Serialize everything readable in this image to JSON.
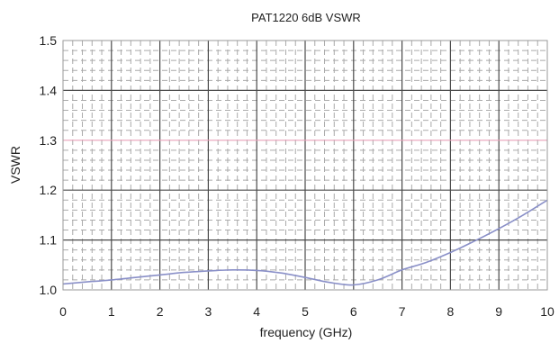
{
  "chart_data": {
    "type": "line",
    "title": "PAT1220 6dB VSWR",
    "xlabel": "frequency (GHz)",
    "ylabel": "VSWR",
    "xlim": [
      0,
      10
    ],
    "ylim": [
      1.0,
      1.5
    ],
    "x_ticks": [
      "0",
      "1",
      "2",
      "3",
      "4",
      "5",
      "6",
      "7",
      "8",
      "9",
      "10"
    ],
    "y_ticks": [
      "1.0",
      "1.1",
      "1.2",
      "1.3",
      "1.4",
      "1.5"
    ],
    "grid": true,
    "reference_line": {
      "y": 1.3,
      "color": "#e8a0b8"
    },
    "series": [
      {
        "color": "#8a90c8",
        "x": [
          0,
          0.5,
          1,
          1.5,
          2,
          2.5,
          3,
          3.5,
          4,
          4.5,
          5,
          5.5,
          6,
          6.5,
          7,
          7.5,
          8,
          8.5,
          9,
          9.5,
          10
        ],
        "y": [
          1.012,
          1.016,
          1.02,
          1.025,
          1.03,
          1.035,
          1.038,
          1.04,
          1.039,
          1.034,
          1.025,
          1.015,
          1.01,
          1.02,
          1.04,
          1.055,
          1.075,
          1.098,
          1.123,
          1.15,
          1.18
        ]
      }
    ]
  }
}
